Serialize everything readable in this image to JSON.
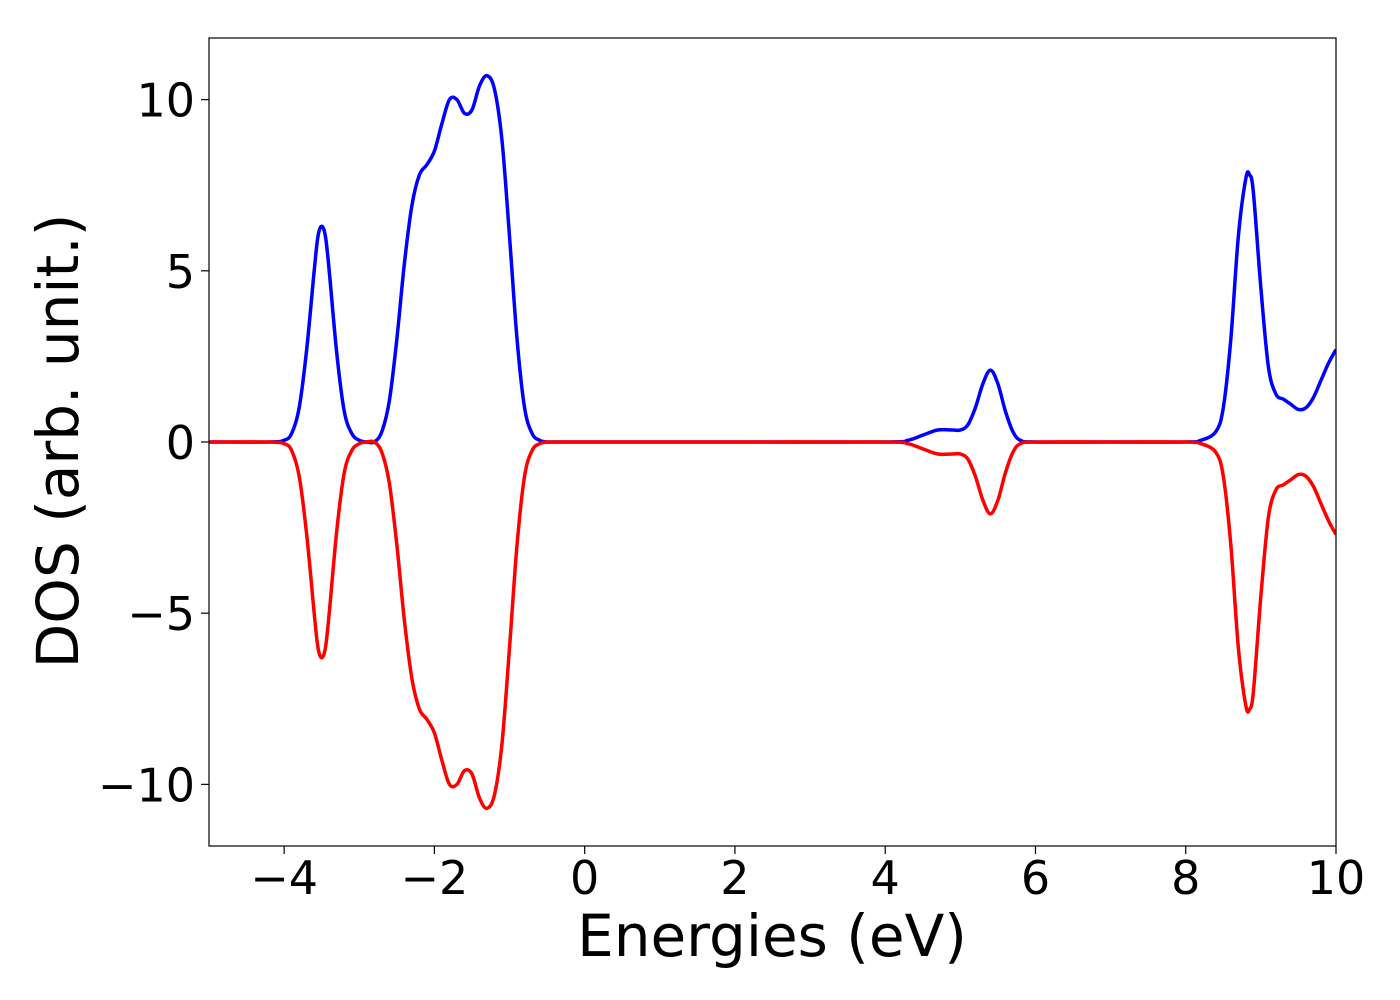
{
  "chart_data": {
    "type": "line",
    "title": "",
    "xlabel": "Energies (eV)",
    "ylabel": "DOS (arb. unit.)",
    "xlim": [
      -5,
      10
    ],
    "ylim": [
      -11.8,
      11.8
    ],
    "xticks": [
      -4,
      -2,
      0,
      2,
      4,
      6,
      8,
      10
    ],
    "xtick_labels": [
      "−4",
      "−2",
      "0",
      "2",
      "4",
      "6",
      "8",
      "10"
    ],
    "yticks": [
      -10,
      -5,
      0,
      5,
      10
    ],
    "ytick_labels": [
      "−10",
      "−5",
      "0",
      "5",
      "10"
    ],
    "grid": false,
    "legend": "none",
    "series": [
      {
        "color": "#0000ff",
        "x": [
          -5.0,
          -4.2,
          -4.0,
          -3.9,
          -3.8,
          -3.7,
          -3.6,
          -3.55,
          -3.5,
          -3.45,
          -3.4,
          -3.3,
          -3.2,
          -3.1,
          -3.0,
          -2.9,
          -2.8,
          -2.7,
          -2.6,
          -2.5,
          -2.4,
          -2.3,
          -2.2,
          -2.1,
          -2.0,
          -1.9,
          -1.8,
          -1.7,
          -1.6,
          -1.5,
          -1.4,
          -1.3,
          -1.2,
          -1.1,
          -1.0,
          -0.9,
          -0.8,
          -0.7,
          -0.6,
          -0.5,
          -0.4,
          0.0,
          2.0,
          4.0,
          4.3,
          4.5,
          4.7,
          4.9,
          5.0,
          5.1,
          5.2,
          5.3,
          5.4,
          5.5,
          5.6,
          5.7,
          5.8,
          6.0,
          7.0,
          8.0,
          8.2,
          8.4,
          8.5,
          8.6,
          8.7,
          8.8,
          8.85,
          8.9,
          9.0,
          9.1,
          9.2,
          9.3,
          9.4,
          9.5,
          9.6,
          9.7,
          9.8,
          9.9,
          10.0
        ],
        "y": [
          0.0,
          0.0,
          0.05,
          0.25,
          1.0,
          2.7,
          5.0,
          6.0,
          6.3,
          6.0,
          5.0,
          2.6,
          0.9,
          0.25,
          0.05,
          0.0,
          0.0,
          0.3,
          1.2,
          3.0,
          5.2,
          6.9,
          7.8,
          8.1,
          8.5,
          9.3,
          10.0,
          10.0,
          9.6,
          9.7,
          10.4,
          10.7,
          10.3,
          8.8,
          6.0,
          3.0,
          1.0,
          0.25,
          0.05,
          0.0,
          0.0,
          0.0,
          0.0,
          0.0,
          0.05,
          0.2,
          0.35,
          0.35,
          0.35,
          0.5,
          1.0,
          1.7,
          2.1,
          1.7,
          0.9,
          0.3,
          0.05,
          0.0,
          0.0,
          0.0,
          0.05,
          0.3,
          1.0,
          3.0,
          6.0,
          7.7,
          7.8,
          7.3,
          4.5,
          2.2,
          1.4,
          1.25,
          1.1,
          0.95,
          1.0,
          1.3,
          1.8,
          2.3,
          2.7
        ]
      },
      {
        "color": "#ff0000",
        "x": [
          -5.0,
          -4.2,
          -4.0,
          -3.9,
          -3.8,
          -3.7,
          -3.6,
          -3.55,
          -3.5,
          -3.45,
          -3.4,
          -3.3,
          -3.2,
          -3.1,
          -3.0,
          -2.9,
          -2.8,
          -2.7,
          -2.6,
          -2.5,
          -2.4,
          -2.3,
          -2.2,
          -2.1,
          -2.0,
          -1.9,
          -1.8,
          -1.7,
          -1.6,
          -1.5,
          -1.4,
          -1.3,
          -1.2,
          -1.1,
          -1.0,
          -0.9,
          -0.8,
          -0.7,
          -0.6,
          -0.5,
          -0.4,
          0.0,
          2.0,
          4.0,
          4.3,
          4.5,
          4.7,
          4.9,
          5.0,
          5.1,
          5.2,
          5.3,
          5.4,
          5.5,
          5.6,
          5.7,
          5.8,
          6.0,
          7.0,
          8.0,
          8.2,
          8.4,
          8.5,
          8.6,
          8.7,
          8.8,
          8.85,
          8.9,
          9.0,
          9.1,
          9.2,
          9.3,
          9.4,
          9.5,
          9.6,
          9.7,
          9.8,
          9.9,
          10.0
        ],
        "y": [
          0.0,
          0.0,
          -0.05,
          -0.25,
          -1.0,
          -2.7,
          -5.0,
          -6.0,
          -6.3,
          -6.0,
          -5.0,
          -2.6,
          -0.9,
          -0.25,
          -0.05,
          0.0,
          0.0,
          -0.3,
          -1.2,
          -3.0,
          -5.2,
          -6.9,
          -7.8,
          -8.1,
          -8.5,
          -9.3,
          -10.0,
          -10.0,
          -9.6,
          -9.7,
          -10.4,
          -10.7,
          -10.3,
          -8.8,
          -6.0,
          -3.0,
          -1.0,
          -0.25,
          -0.05,
          0.0,
          0.0,
          0.0,
          0.0,
          0.0,
          -0.05,
          -0.2,
          -0.35,
          -0.35,
          -0.35,
          -0.5,
          -1.0,
          -1.7,
          -2.1,
          -1.7,
          -0.9,
          -0.3,
          -0.05,
          0.0,
          0.0,
          0.0,
          -0.05,
          -0.3,
          -1.0,
          -3.0,
          -6.0,
          -7.7,
          -7.8,
          -7.3,
          -4.5,
          -2.2,
          -1.4,
          -1.25,
          -1.1,
          -0.95,
          -1.0,
          -1.3,
          -1.8,
          -2.3,
          -2.7
        ]
      }
    ]
  }
}
